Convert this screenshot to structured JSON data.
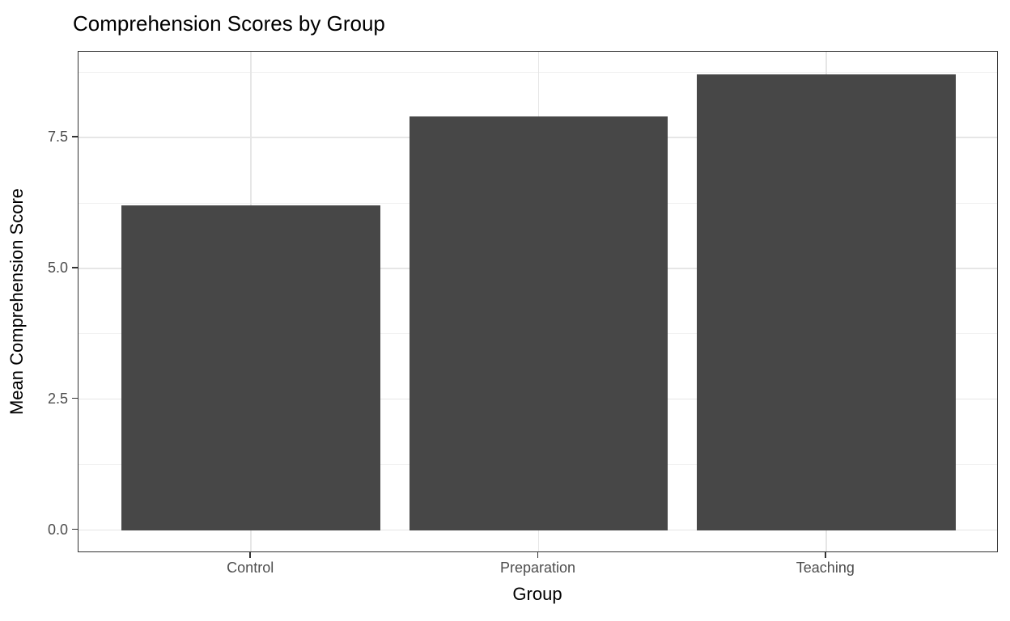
{
  "chart_data": {
    "type": "bar",
    "title": "Comprehension Scores by Group",
    "xlabel": "Group",
    "ylabel": "Mean Comprehension Score",
    "categories": [
      "Control",
      "Preparation",
      "Teaching"
    ],
    "values": [
      6.2,
      7.9,
      8.7
    ],
    "ylim": [
      -0.44,
      9.14
    ],
    "yticks": [
      {
        "value": 0.0,
        "label": "0.0"
      },
      {
        "value": 2.5,
        "label": "2.5"
      },
      {
        "value": 5.0,
        "label": "5.0"
      },
      {
        "value": 7.5,
        "label": "7.5"
      }
    ],
    "minor_ticks": [
      1.25,
      3.75,
      6.25,
      8.75
    ],
    "grid": true,
    "legend": "none",
    "colors": {
      "background": "#ffffff",
      "bar_fill": "#474747",
      "panel_border": "#333333",
      "grid_major": "#e6e6e6",
      "grid_minor": "#f1f1f1",
      "axis_text": "#4d4d4d",
      "axis_title": "#000000",
      "title": "#000000",
      "tick": "#333333"
    }
  }
}
